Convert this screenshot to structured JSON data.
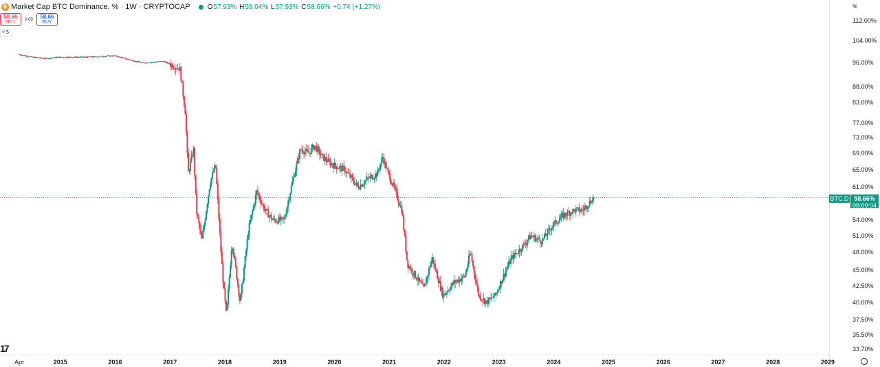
{
  "header": {
    "title": "Market Cap BTC Dominance, %  · 1W · CRYPTOCAP",
    "ohlc": {
      "o_key": "O",
      "o": "57.93%",
      "h_key": "H",
      "h": "59.04%",
      "l_key": "L",
      "l": "57.93%",
      "c_key": "C",
      "c": "58.66%",
      "change": "+0.74 (+1.27%)"
    }
  },
  "trade": {
    "sell_value": "58.66",
    "sell_label": "SELL",
    "spread": "0.00",
    "buy_value": "58.66",
    "buy_label": "BUY"
  },
  "indicators_toggle": "5",
  "scale_label": "%",
  "price_tag": {
    "symbol": "BTC.D",
    "price": "58.66%",
    "countdown": "08:09:04"
  },
  "colors": {
    "up": "#089981",
    "down": "#f23645",
    "accent": "#f7931a"
  },
  "icons": [
    "bitcoin-icon",
    "tradingview-logo-icon",
    "settings-icon"
  ],
  "chart_data": {
    "type": "candlestick",
    "scale": "log",
    "y_ticks": [
      "112.00%",
      "104.00%",
      "96.00%",
      "88.00%",
      "83.00%",
      "77.00%",
      "73.00%",
      "69.00%",
      "65.00%",
      "61.00%",
      "58.66%",
      "54.00%",
      "51.00%",
      "48.00%",
      "45.00%",
      "42.50%",
      "40.00%",
      "37.50%",
      "35.50%",
      "33.70%"
    ],
    "x_ticks": [
      "Apr",
      "2015",
      "2016",
      "2017",
      "2018",
      "2019",
      "2020",
      "2021",
      "2022",
      "2023",
      "2024",
      "2025",
      "2026",
      "2027",
      "2028",
      "2029"
    ],
    "x_tick_years": [
      2014.25,
      2015,
      2016,
      2017,
      2018,
      2019,
      2020,
      2021,
      2022,
      2023,
      2024,
      2025,
      2026,
      2027,
      2028,
      2029
    ],
    "y_tick_values": [
      112,
      104,
      96,
      88,
      83,
      77,
      73,
      69,
      65,
      61,
      54,
      51,
      48,
      45,
      42.5,
      40,
      37.5,
      35.5,
      33.7
    ],
    "last_price": 58.66,
    "series": [
      {
        "x": [
          2014.25,
          2014.5,
          2014.75,
          2015.0,
          2015.5,
          2016.0,
          2016.5,
          2016.55,
          2016.9,
          2017.2,
          2017.3,
          2017.35,
          2017.45,
          2017.5,
          2017.6,
          2017.75,
          2017.85,
          2017.95,
          2018.0,
          2018.05,
          2018.15,
          2018.3,
          2018.45,
          2018.6,
          2018.75,
          2018.9,
          2019.1,
          2019.25,
          2019.4,
          2019.55,
          2019.65,
          2019.8,
          2020.0,
          2020.2,
          2020.45,
          2020.65,
          2020.8,
          2020.9,
          2021.0,
          2021.1,
          2021.25,
          2021.35,
          2021.5,
          2021.65,
          2021.8,
          2022.0,
          2022.2,
          2022.4,
          2022.5,
          2022.65,
          2022.8,
          2022.95,
          2023.1,
          2023.25,
          2023.45,
          2023.6,
          2023.8,
          2024.0,
          2024.2,
          2024.4,
          2024.55,
          2024.7,
          2024.75
        ],
        "y": [
          99,
          98,
          97.5,
          98,
          98,
          98.5,
          96,
          96,
          96.5,
          94,
          80,
          64,
          70,
          56,
          50,
          62,
          66,
          48,
          42,
          38,
          50,
          40,
          52,
          60,
          56,
          54,
          54,
          62,
          70,
          69,
          71,
          68,
          66,
          65,
          61,
          63,
          64,
          68,
          64,
          61,
          56,
          46,
          44,
          42,
          47,
          41,
          43,
          44,
          48,
          41,
          40,
          41,
          44,
          47,
          49,
          51,
          50,
          53,
          55,
          56,
          56,
          58,
          58.66
        ]
      }
    ]
  }
}
